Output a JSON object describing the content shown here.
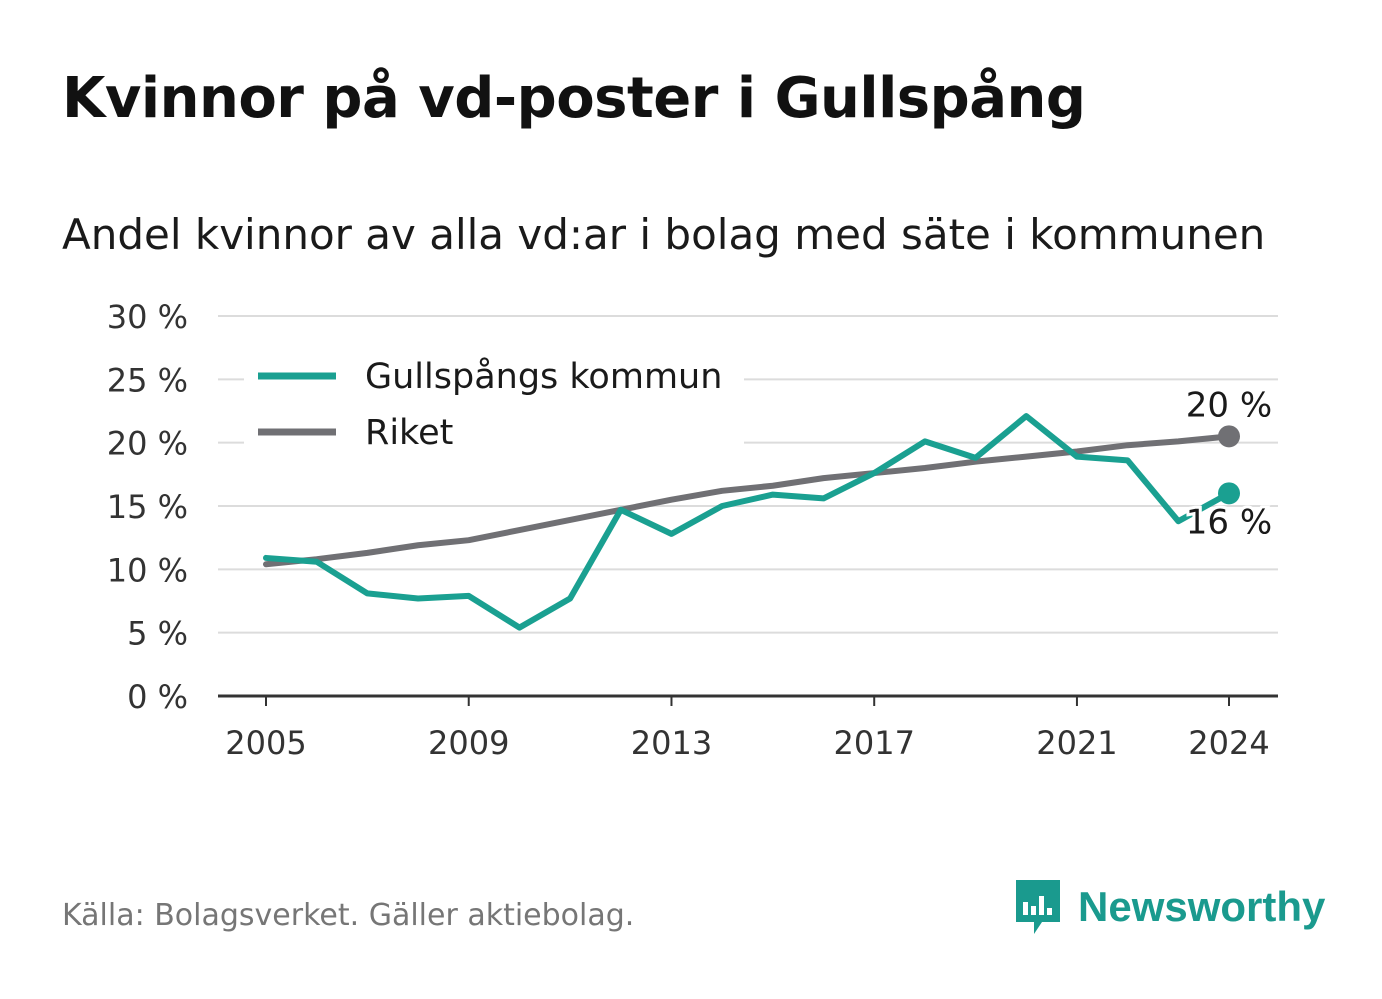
{
  "header": {
    "title": "Kvinnor på vd-poster i Gullspång",
    "subtitle": "Andel kvinnor av alla vd:ar i bolag med säte i kommunen"
  },
  "chart_data": {
    "type": "line",
    "x": [
      2005,
      2006,
      2007,
      2008,
      2009,
      2010,
      2011,
      2012,
      2013,
      2014,
      2015,
      2016,
      2017,
      2018,
      2019,
      2020,
      2021,
      2022,
      2023,
      2024
    ],
    "x_ticks": [
      "2005",
      "2009",
      "2013",
      "2017",
      "2021",
      "2024"
    ],
    "y_ticks": [
      "0 %",
      "5 %",
      "10 %",
      "15 %",
      "20 %",
      "25 %",
      "30 %"
    ],
    "ylim": [
      0,
      30
    ],
    "grid": true,
    "legend": "top-left",
    "series": [
      {
        "name": "Gullspångs kommun",
        "color": "#1aa091",
        "values": [
          10.9,
          10.6,
          8.1,
          7.7,
          7.9,
          5.4,
          7.7,
          14.7,
          12.8,
          15.0,
          15.9,
          15.6,
          17.6,
          20.1,
          18.8,
          22.1,
          18.9,
          18.6,
          13.8,
          16.0
        ],
        "end_label": "16 %"
      },
      {
        "name": "Riket",
        "color": "#707074",
        "values": [
          10.4,
          10.8,
          11.3,
          11.9,
          12.3,
          13.1,
          13.9,
          14.7,
          15.5,
          16.2,
          16.6,
          17.2,
          17.6,
          18.0,
          18.5,
          18.9,
          19.3,
          19.8,
          20.1,
          20.5
        ],
        "end_label": "20 %"
      }
    ]
  },
  "footer": {
    "source": "Källa: Bolagsverket. Gäller aktiebolag.",
    "brand": "Newsworthy",
    "brand_color": "#1a9a8e",
    "logo_icon": "newsworthy-bar-chart-icon"
  }
}
